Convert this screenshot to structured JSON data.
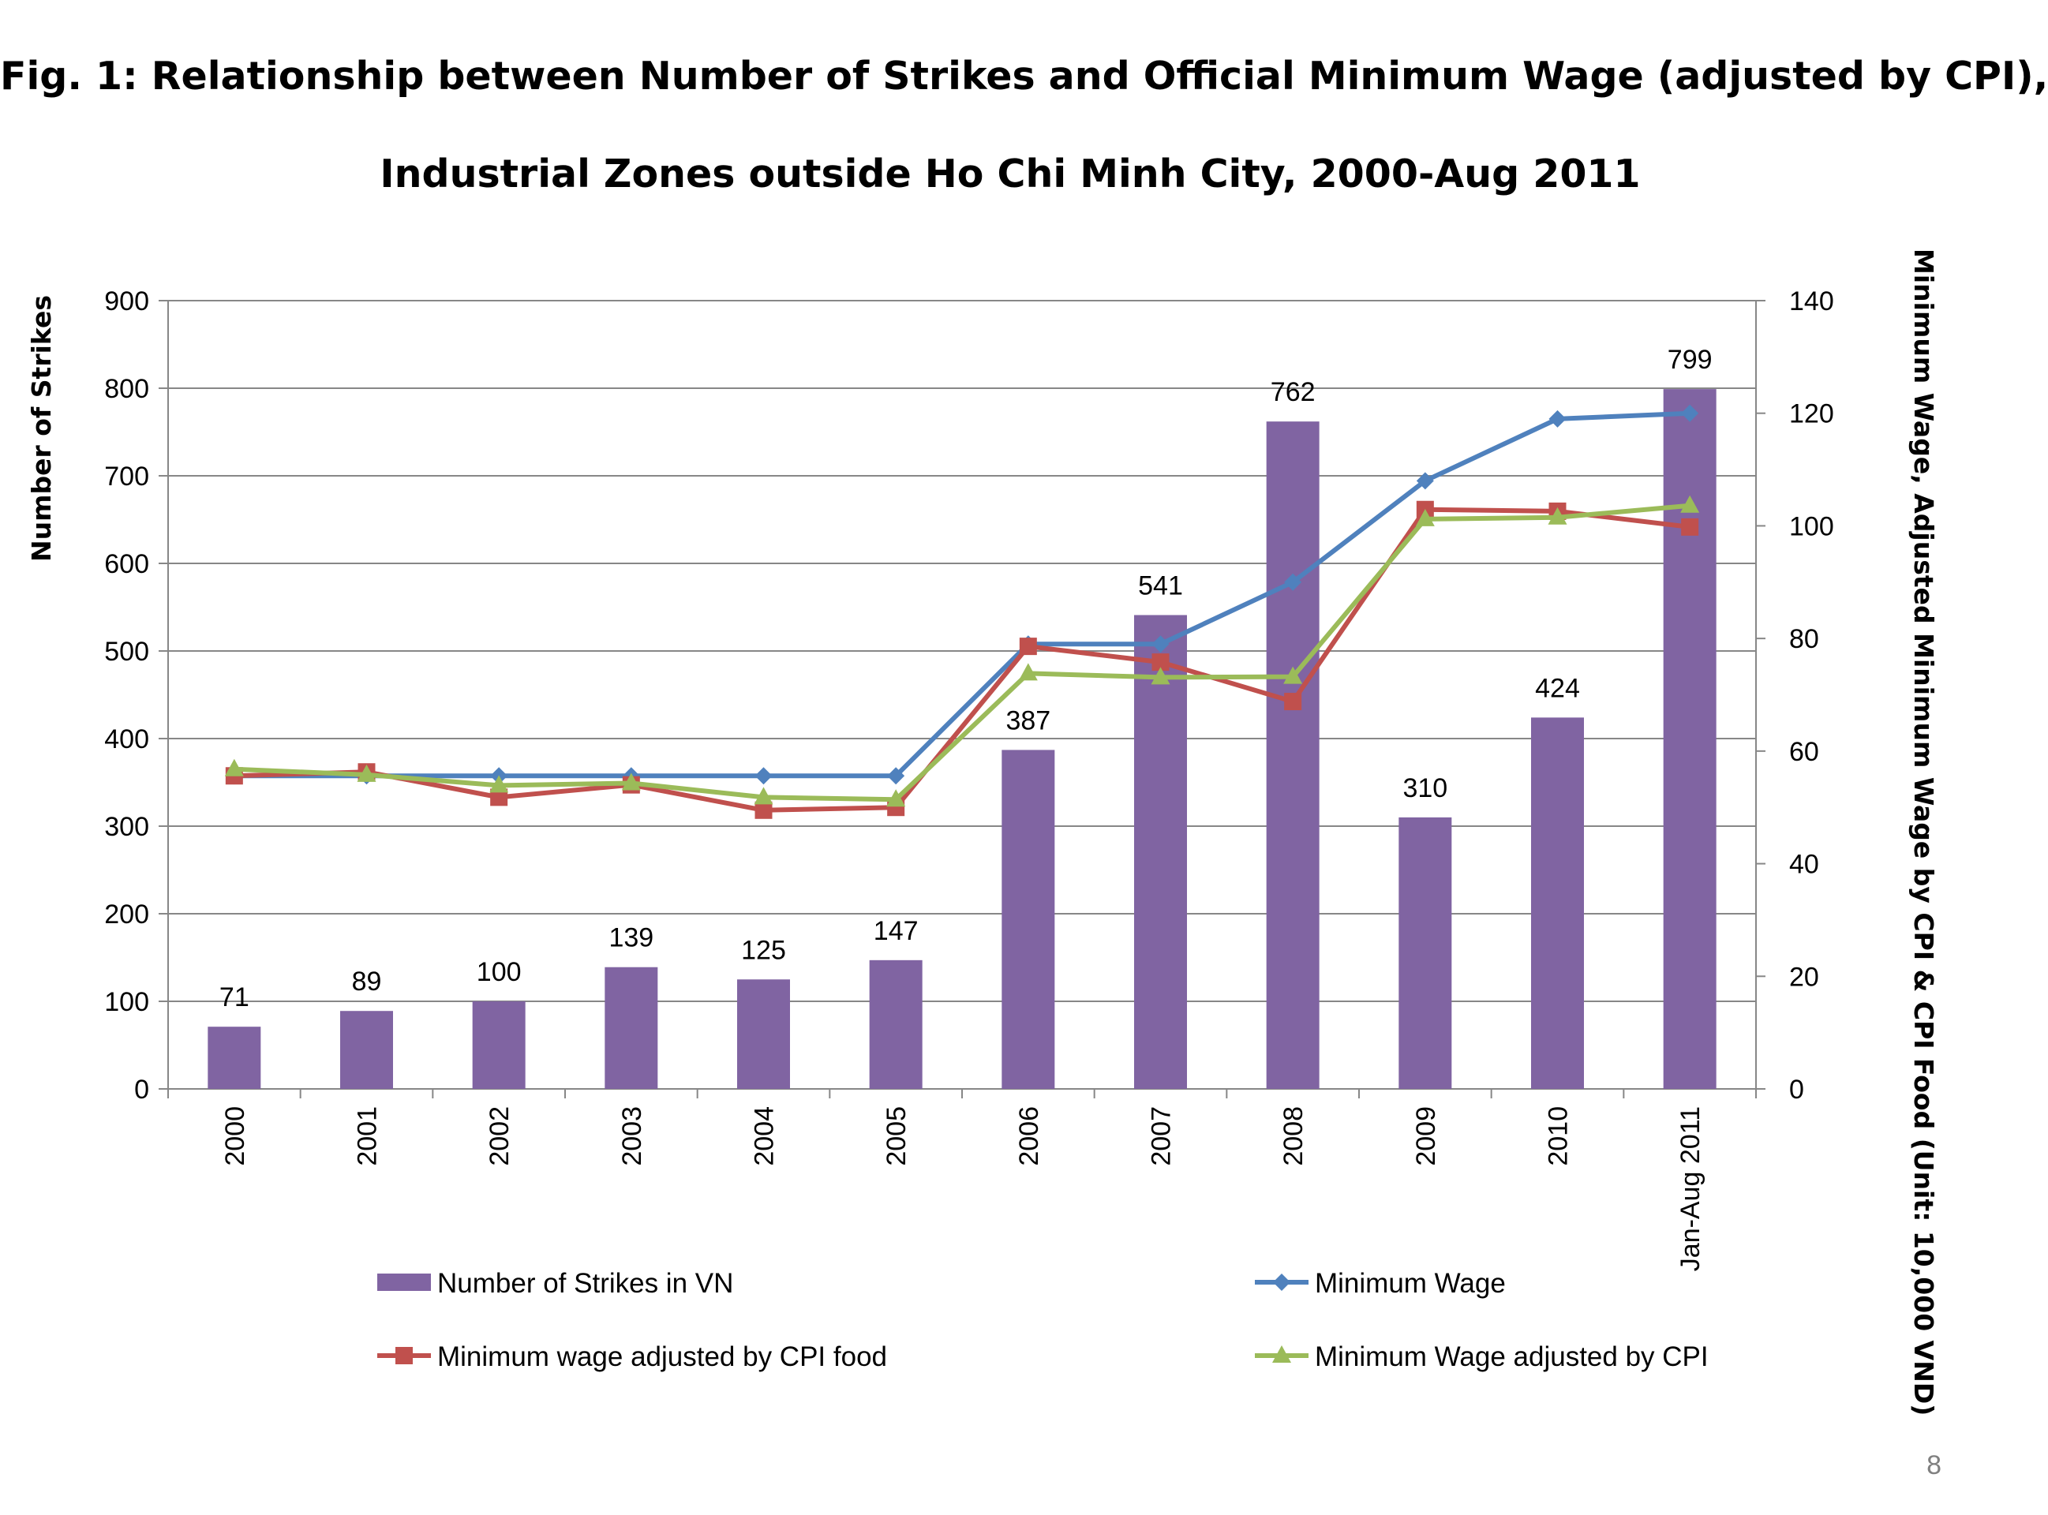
{
  "title_line_1": "Fig. 1: Relationship between Number of Strikes and Official Minimum Wage (adjusted by CPI),",
  "title_line_2": "Industrial Zones outside Ho Chi Minh City, 2000-Aug 2011",
  "page_number": "8",
  "chart_data": {
    "type": "bar",
    "categories": [
      "2000",
      "2001",
      "2002",
      "2003",
      "2004",
      "2005",
      "2006",
      "2007",
      "2008",
      "2009",
      "2010",
      "Jan-Aug 2011"
    ],
    "ylabel": "Number of Strikes",
    "y2label": "Minimum Wage, Adjusted Minimum Wage by CPI & CPI Food (Unit: 10,000 VND)",
    "ylim": [
      0,
      900
    ],
    "y2lim": [
      0,
      140
    ],
    "yticks": [
      0,
      100,
      200,
      300,
      400,
      500,
      600,
      700,
      800,
      900
    ],
    "y2ticks": [
      0,
      20,
      40,
      60,
      80,
      100,
      120,
      140
    ],
    "grid": true,
    "legend_position": "bottom",
    "bar_series": {
      "name": "Number of Strikes in VN",
      "color": "#8064A2",
      "values": [
        71,
        89,
        100,
        139,
        125,
        147,
        387,
        541,
        762,
        310,
        424,
        799
      ],
      "labels": [
        "71",
        "89",
        "100",
        "139",
        "125",
        "147",
        "387",
        "541",
        "762",
        "310",
        "424",
        "799"
      ]
    },
    "line_series": [
      {
        "name": "Minimum Wage",
        "color": "#4F81BD",
        "marker": "diamond",
        "values": [
          55.6,
          55.6,
          55.6,
          55.6,
          55.6,
          55.6,
          79.0,
          79.0,
          90.0,
          108.0,
          119.0,
          120.0
        ]
      },
      {
        "name": "Minimum wage adjusted by CPI food",
        "color": "#C0504D",
        "marker": "square",
        "values": [
          55.6,
          56.3,
          51.8,
          54.0,
          49.5,
          50.0,
          78.6,
          75.8,
          68.8,
          102.9,
          102.6,
          99.8
        ]
      },
      {
        "name": "Minimum Wage adjusted by CPI",
        "color": "#9BBB59",
        "marker": "triangle",
        "values": [
          56.8,
          55.8,
          53.9,
          54.3,
          51.8,
          51.4,
          73.8,
          73.1,
          73.2,
          101.2,
          101.5,
          103.6
        ]
      }
    ]
  }
}
